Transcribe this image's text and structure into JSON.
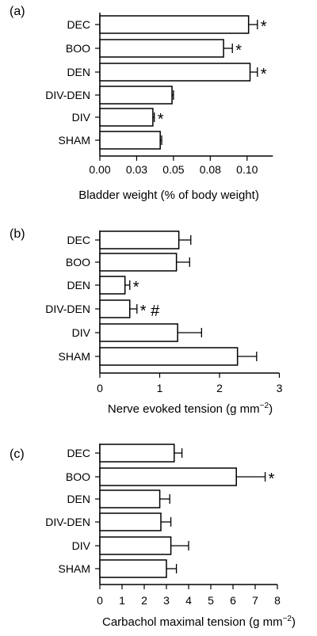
{
  "chart_data": [
    {
      "panel_label": "(a)",
      "type": "bar",
      "orientation": "horizontal",
      "xlabel": "Bladder weight (% of body weight)",
      "categories": [
        "DEC",
        "BOO",
        "DEN",
        "DIV-DEN",
        "DIV",
        "SHAM"
      ],
      "values": [
        0.101,
        0.084,
        0.102,
        0.049,
        0.036,
        0.041
      ],
      "errors": [
        0.006,
        0.006,
        0.005,
        0.001,
        0.001,
        0.001
      ],
      "annotations": [
        "*",
        "*",
        "*",
        "",
        "*",
        ""
      ],
      "xlim": [
        0,
        0.1175
      ],
      "xticks": [
        0,
        0.025,
        0.05,
        0.075,
        0.1
      ],
      "xtick_labels": [
        "0.00",
        "0.03",
        "0.05",
        "0.08",
        "0.10"
      ],
      "grid": false
    },
    {
      "panel_label": "(b)",
      "type": "bar",
      "orientation": "horizontal",
      "xlabel": "Nerve evoked tension (g mm",
      "xlabel_sup": "−2",
      "xlabel_suffix": ")",
      "categories": [
        "DEC",
        "BOO",
        "DEN",
        "DIV-DEN",
        "DIV",
        "SHAM"
      ],
      "values": [
        1.32,
        1.28,
        0.42,
        0.5,
        1.3,
        2.3
      ],
      "errors": [
        0.2,
        0.22,
        0.08,
        0.12,
        0.4,
        0.32
      ],
      "annotations": [
        "",
        "",
        "*",
        "* #",
        "",
        ""
      ],
      "xlim": [
        0,
        3
      ],
      "xticks": [
        0,
        1,
        2,
        3
      ],
      "xtick_labels": [
        "0",
        "1",
        "2",
        "3"
      ],
      "grid": false
    },
    {
      "panel_label": "(c)",
      "type": "bar",
      "orientation": "horizontal",
      "xlabel": "Carbachol maximal tension (g mm",
      "xlabel_sup": "−2",
      "xlabel_suffix": ")",
      "categories": [
        "DEC",
        "BOO",
        "DEN",
        "DIV-DEN",
        "DIV",
        "SHAM"
      ],
      "values": [
        3.35,
        6.15,
        2.7,
        2.75,
        3.2,
        3.0
      ],
      "errors": [
        0.35,
        1.3,
        0.45,
        0.45,
        0.8,
        0.45
      ],
      "annotations": [
        "",
        "*",
        "",
        "",
        "",
        ""
      ],
      "xlim": [
        0,
        8
      ],
      "xticks": [
        0,
        1,
        2,
        3,
        4,
        5,
        6,
        7,
        8
      ],
      "xtick_labels": [
        "0",
        "1",
        "2",
        "3",
        "4",
        "5",
        "6",
        "7",
        "8"
      ],
      "grid": false
    }
  ]
}
